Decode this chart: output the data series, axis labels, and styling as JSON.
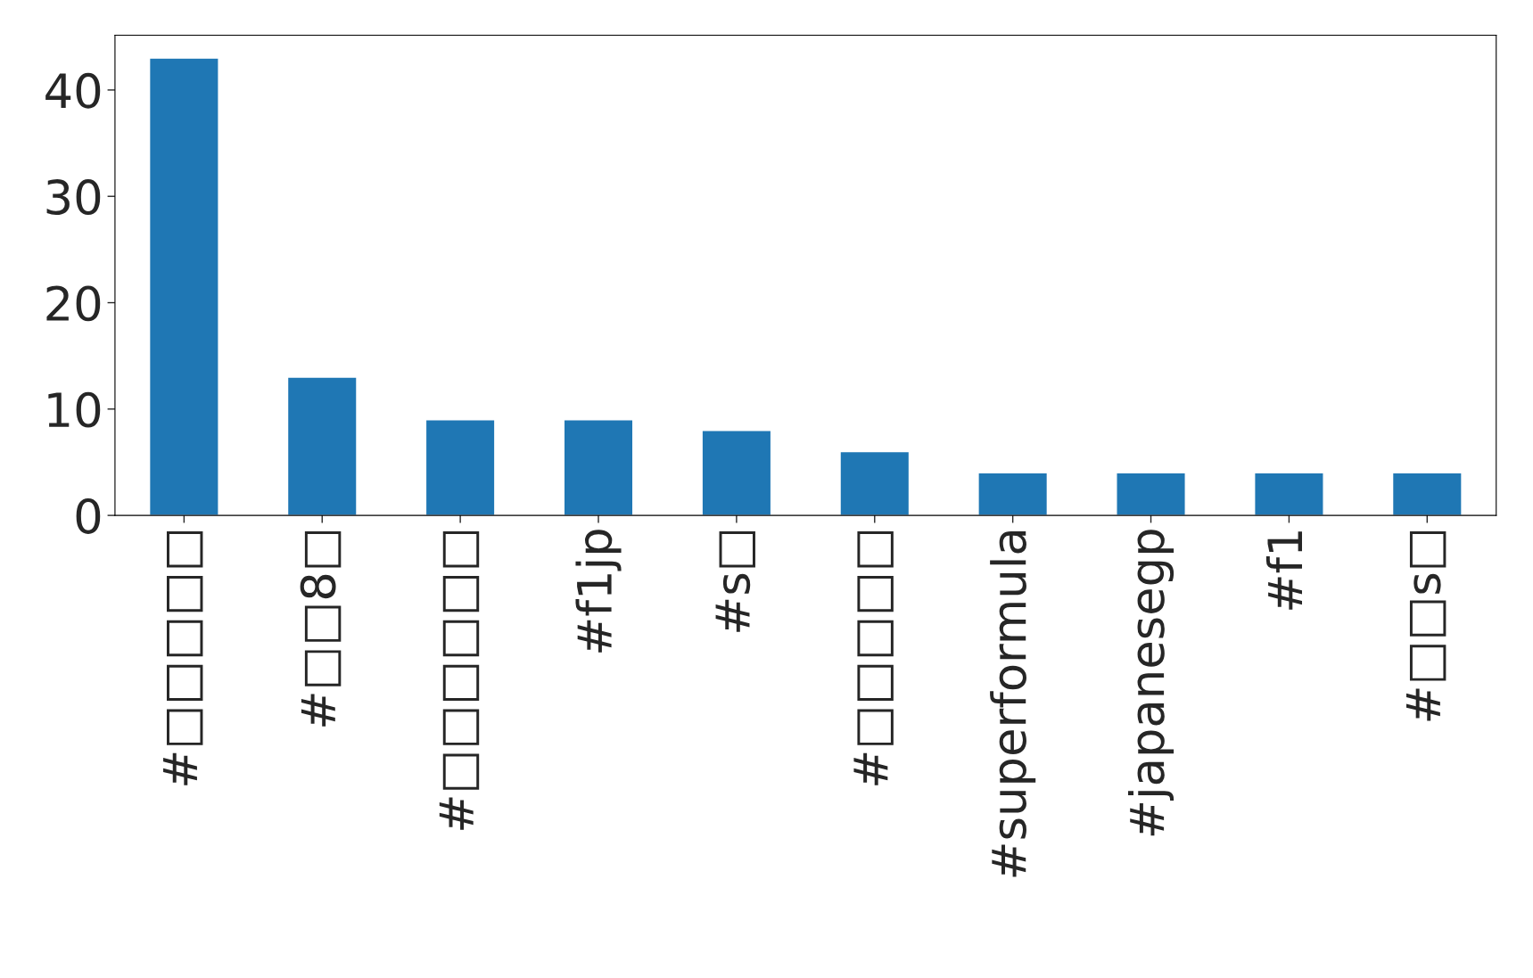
{
  "chart_data": {
    "type": "bar",
    "categories": [
      "#□□□□□",
      "#□□8□",
      "#□□□□□□",
      "#f1jp",
      "#s□",
      "#□□□□□",
      "#superformula",
      "#japanesegp",
      "#f1",
      "#□□s□"
    ],
    "values": [
      43,
      13,
      9,
      9,
      8,
      6,
      4,
      4,
      4,
      4
    ],
    "color": "#1f77b4",
    "ylim": [
      0,
      45.15
    ],
    "yticks": [
      0,
      10,
      20,
      30,
      40
    ],
    "grid": false,
    "legend": false
  }
}
